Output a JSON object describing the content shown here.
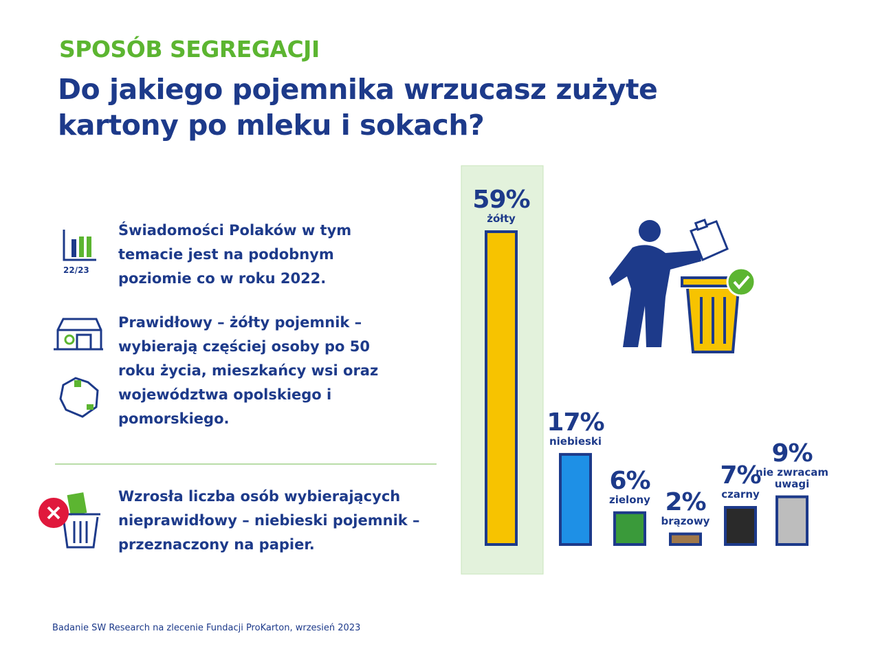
{
  "header": {
    "kicker": "SPOSÓB SEGREGACJI",
    "title": "Do jakiego pojemnika wrzucasz zużyte kartony po mleku i sokach?"
  },
  "notes": [
    "Świadomości Polaków w tym temacie jest na podobnym poziomie co w roku 2022.",
    "Prawidłowy – żółty pojemnik – wybierają częściej osoby po 50 roku życia, mieszkańcy wsi oraz województwa opolskiego i pomorskiego.",
    "Wzrosła liczba osób wybierających nieprawidłowy – niebieski pojemnik – przeznaczony na papier."
  ],
  "icon_label": "22/23",
  "source": "Badanie SW Research na zlecenie Fundacji ProKarton, wrzesień 2023",
  "chart_data": {
    "type": "bar",
    "categories": [
      "żółty",
      "niebieski",
      "zielony",
      "brązowy",
      "czarny",
      "nie zwracam uwagi"
    ],
    "values": [
      59,
      17,
      6,
      2,
      7,
      9
    ],
    "value_labels": [
      "59%",
      "17%",
      "6%",
      "2%",
      "7%",
      "9%"
    ],
    "colors": [
      "#f7c300",
      "#1e90e6",
      "#3a9a3a",
      "#a0784a",
      "#2a2a2a",
      "#bdbdbd"
    ]
  }
}
